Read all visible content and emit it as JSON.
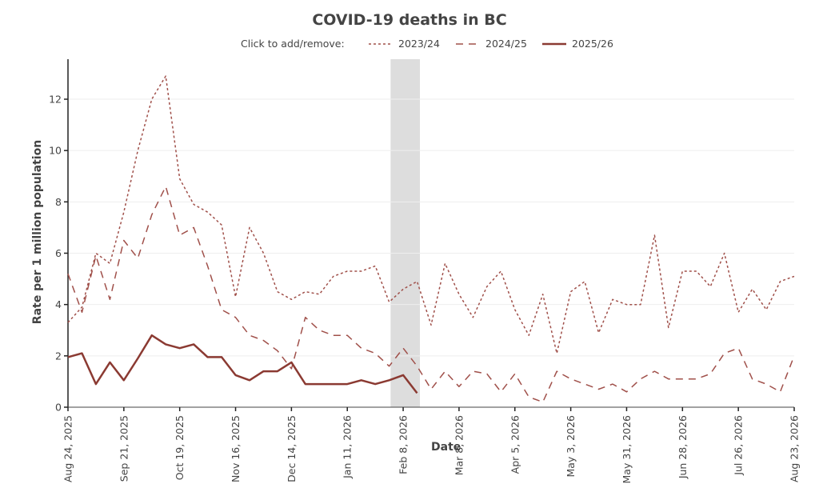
{
  "chart_data": {
    "type": "line",
    "title": "COVID-19 deaths in BC",
    "xlabel": "Date",
    "ylabel": "Rate per 1 million population",
    "ylim": [
      0,
      13.5
    ],
    "yticks": [
      0,
      2,
      4,
      6,
      8,
      10,
      12
    ],
    "grid": true,
    "x_start": "Aug 24, 2025",
    "x_end": "Aug 23, 2026",
    "x_interval": "weekly",
    "xtick_labels": [
      "Aug 24, 2025",
      "Sep 21, 2025",
      "Oct 19, 2025",
      "Nov 16, 2025",
      "Dec 14, 2025",
      "Jan 11, 2026",
      "Feb 8, 2026",
      "Mar 8, 2026",
      "Apr 5, 2026",
      "May 3, 2026",
      "May 31, 2026",
      "Jun 28, 2026",
      "Jul 26, 2026",
      "Aug 23, 2026"
    ],
    "xtick_week_index": [
      0,
      4,
      8,
      12,
      16,
      20,
      24,
      28,
      32,
      36,
      40,
      44,
      48,
      52
    ],
    "shaded_region": {
      "from_week": 23.1,
      "to_week": 25.2,
      "color": "#dddddd"
    },
    "legend": {
      "prompt": "Click to add/remove:",
      "placement": "top-center"
    },
    "series": [
      {
        "name": "2023/24",
        "style": "dotted",
        "color": "#a0504a",
        "values": [
          3.3,
          3.9,
          6.0,
          5.6,
          7.6,
          10.0,
          12.0,
          12.9,
          8.9,
          7.9,
          7.6,
          7.1,
          4.3,
          7.0,
          6.0,
          4.5,
          4.2,
          4.5,
          4.4,
          5.1,
          5.3,
          5.3,
          5.5,
          4.1,
          4.6,
          4.9,
          3.2,
          5.6,
          4.4,
          3.5,
          4.7,
          5.3,
          3.8,
          2.8,
          4.4,
          2.1,
          4.5,
          4.9,
          2.9,
          4.2,
          4.0,
          4.0,
          6.7,
          3.1,
          5.3,
          5.3,
          4.7,
          6.0,
          3.7,
          4.6,
          3.8,
          4.9,
          5.1
        ]
      },
      {
        "name": "2024/25",
        "style": "dashed",
        "color": "#a0504a",
        "values": [
          5.2,
          3.7,
          5.9,
          4.2,
          6.5,
          5.8,
          7.5,
          8.6,
          6.7,
          7.0,
          5.5,
          3.8,
          3.5,
          2.8,
          2.6,
          2.2,
          1.5,
          3.5,
          3.0,
          2.8,
          2.8,
          2.3,
          2.1,
          1.6,
          2.3,
          1.6,
          0.7,
          1.4,
          0.8,
          1.4,
          1.3,
          0.6,
          1.3,
          0.4,
          0.2,
          1.4,
          1.1,
          0.9,
          0.7,
          0.9,
          0.6,
          1.1,
          1.4,
          1.1,
          1.1,
          1.1,
          1.3,
          2.1,
          2.3,
          1.1,
          0.9,
          0.6,
          2.0
        ]
      },
      {
        "name": "2025/26",
        "style": "solid",
        "color": "#8b3a32",
        "values": [
          1.95,
          2.1,
          0.9,
          1.75,
          1.05,
          1.9,
          2.8,
          2.45,
          2.3,
          2.45,
          1.95,
          1.95,
          1.25,
          1.05,
          1.4,
          1.4,
          1.75,
          0.9,
          0.9,
          0.9,
          0.9,
          1.05,
          0.9,
          1.05,
          1.25,
          0.55
        ]
      }
    ]
  }
}
